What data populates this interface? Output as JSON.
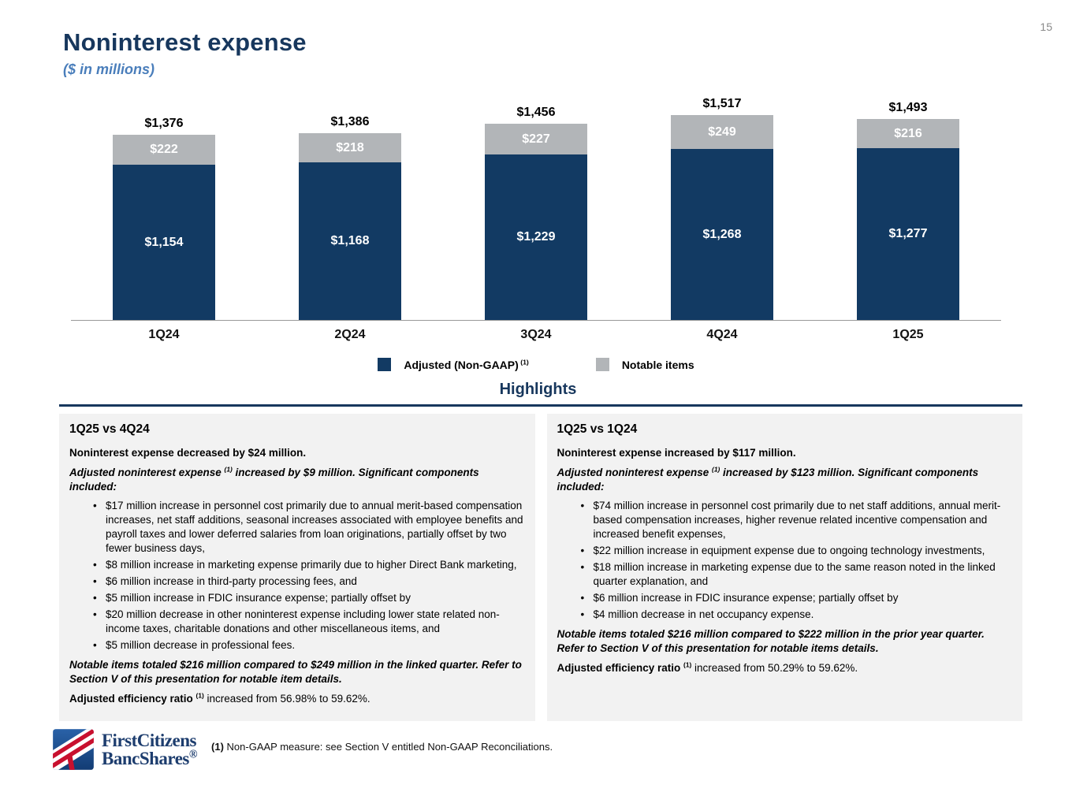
{
  "page": {
    "number": "15"
  },
  "header": {
    "title": "Noninterest expense",
    "subtitle": "($ in millions)"
  },
  "chart_data": {
    "type": "bar",
    "subtype": "stacked",
    "categories": [
      "1Q24",
      "2Q24",
      "3Q24",
      "4Q24",
      "1Q25"
    ],
    "series": [
      {
        "name": "Adjusted (Non-GAAP)",
        "superscript": "(1)",
        "color": "#123a63",
        "values": [
          1154,
          1168,
          1229,
          1268,
          1277
        ],
        "labels": [
          "$1,154",
          "$1,168",
          "$1,229",
          "$1,268",
          "$1,277"
        ]
      },
      {
        "name": "Notable items",
        "superscript": "",
        "color": "#b2b5b8",
        "values": [
          222,
          218,
          227,
          249,
          216
        ],
        "labels": [
          "$222",
          "$218",
          "$227",
          "$249",
          "$216"
        ]
      }
    ],
    "totals": [
      1376,
      1386,
      1456,
      1517,
      1493
    ],
    "total_labels": [
      "$1,376",
      "$1,386",
      "$1,456",
      "$1,517",
      "$1,493"
    ],
    "title": "Noninterest expense ($ in millions)",
    "xlabel": "",
    "ylabel": "",
    "ylim": [
      0,
      1700
    ],
    "grid": false,
    "legend_position": "bottom"
  },
  "highlights": {
    "title": "Highlights",
    "columns": [
      {
        "heading": "1Q25 vs 4Q24",
        "blocks": [
          {
            "type": "p",
            "style": "b",
            "runs": [
              {
                "t": "Noninterest expense decreased by $24 million."
              }
            ]
          },
          {
            "type": "p",
            "style": "bi",
            "runs": [
              {
                "t": "Adjusted noninterest expense "
              },
              {
                "t": "(1)",
                "sup": true
              },
              {
                "t": " increased by $9 million. Significant components included:"
              }
            ]
          },
          {
            "type": "bullets",
            "items": [
              "$17 million increase in personnel cost primarily due to annual merit-based compensation increases, net staff additions, seasonal increases associated with employee benefits and payroll taxes and lower deferred salaries from loan originations, partially offset by two fewer business days,",
              "$8 million increase in marketing expense primarily due to higher Direct Bank marketing,",
              "$6 million increase in third-party processing fees, and",
              "$5 million increase in FDIC insurance expense; partially offset by",
              "$20 million decrease in other noninterest expense including lower state related non-income taxes, charitable donations and other miscellaneous items, and",
              "$5 million decrease in professional fees."
            ]
          },
          {
            "type": "p",
            "style": "bi",
            "runs": [
              {
                "t": "Notable items totaled $216 million compared to $249 million in the linked quarter. Refer to Section V of this presentation for notable item details."
              }
            ]
          },
          {
            "type": "p",
            "style": "",
            "runs": [
              {
                "t": "Adjusted efficiency ratio ",
                "bold": true
              },
              {
                "t": "(1)",
                "sup": true,
                "bold": true
              },
              {
                "t": " increased from 56.98% to 59.62%."
              }
            ]
          }
        ]
      },
      {
        "heading": "1Q25 vs 1Q24",
        "blocks": [
          {
            "type": "p",
            "style": "b",
            "runs": [
              {
                "t": "Noninterest expense increased by $117 million."
              }
            ]
          },
          {
            "type": "p",
            "style": "bi",
            "runs": [
              {
                "t": "Adjusted noninterest expense "
              },
              {
                "t": "(1)",
                "sup": true
              },
              {
                "t": " increased by $123 million. Significant components included:"
              }
            ]
          },
          {
            "type": "bullets",
            "items": [
              "$74 million increase in personnel cost primarily due to net staff additions, annual merit-based compensation increases, higher revenue related incentive compensation and increased benefit expenses,",
              "$22 million increase in equipment expense due to ongoing technology investments,",
              "$18 million increase in marketing expense due to the same reason noted in the linked quarter explanation, and",
              "$6 million increase in FDIC insurance expense; partially offset by",
              "$4 million decrease in net occupancy expense."
            ]
          },
          {
            "type": "p",
            "style": "bi",
            "runs": [
              {
                "t": "Notable items totaled $216 million compared to $222 million in the prior year quarter. Refer to Section V of this presentation for notable items details."
              }
            ]
          },
          {
            "type": "p",
            "style": "",
            "runs": [
              {
                "t": "Adjusted efficiency ratio ",
                "bold": true
              },
              {
                "t": "(1)",
                "sup": true,
                "bold": true
              },
              {
                "t": " increased from 50.29% to 59.62%."
              }
            ]
          }
        ]
      }
    ]
  },
  "footer": {
    "logo_line1": "FirstCitizens",
    "logo_line2": "BancShares",
    "logo_reg": "®",
    "footnote_runs": [
      {
        "t": "(1) ",
        "bold": true
      },
      {
        "t": "Non-GAAP measure: see Section V entitled Non-GAAP Reconciliations."
      }
    ]
  },
  "colors": {
    "navy": "#17375d",
    "bar_blue": "#123a63",
    "bar_gray": "#b2b5b8",
    "subtitle_blue": "#4a7ebb",
    "column_bg": "#f2f2f2",
    "logo_blue": "#1d5296",
    "logo_red": "#c8102e"
  }
}
